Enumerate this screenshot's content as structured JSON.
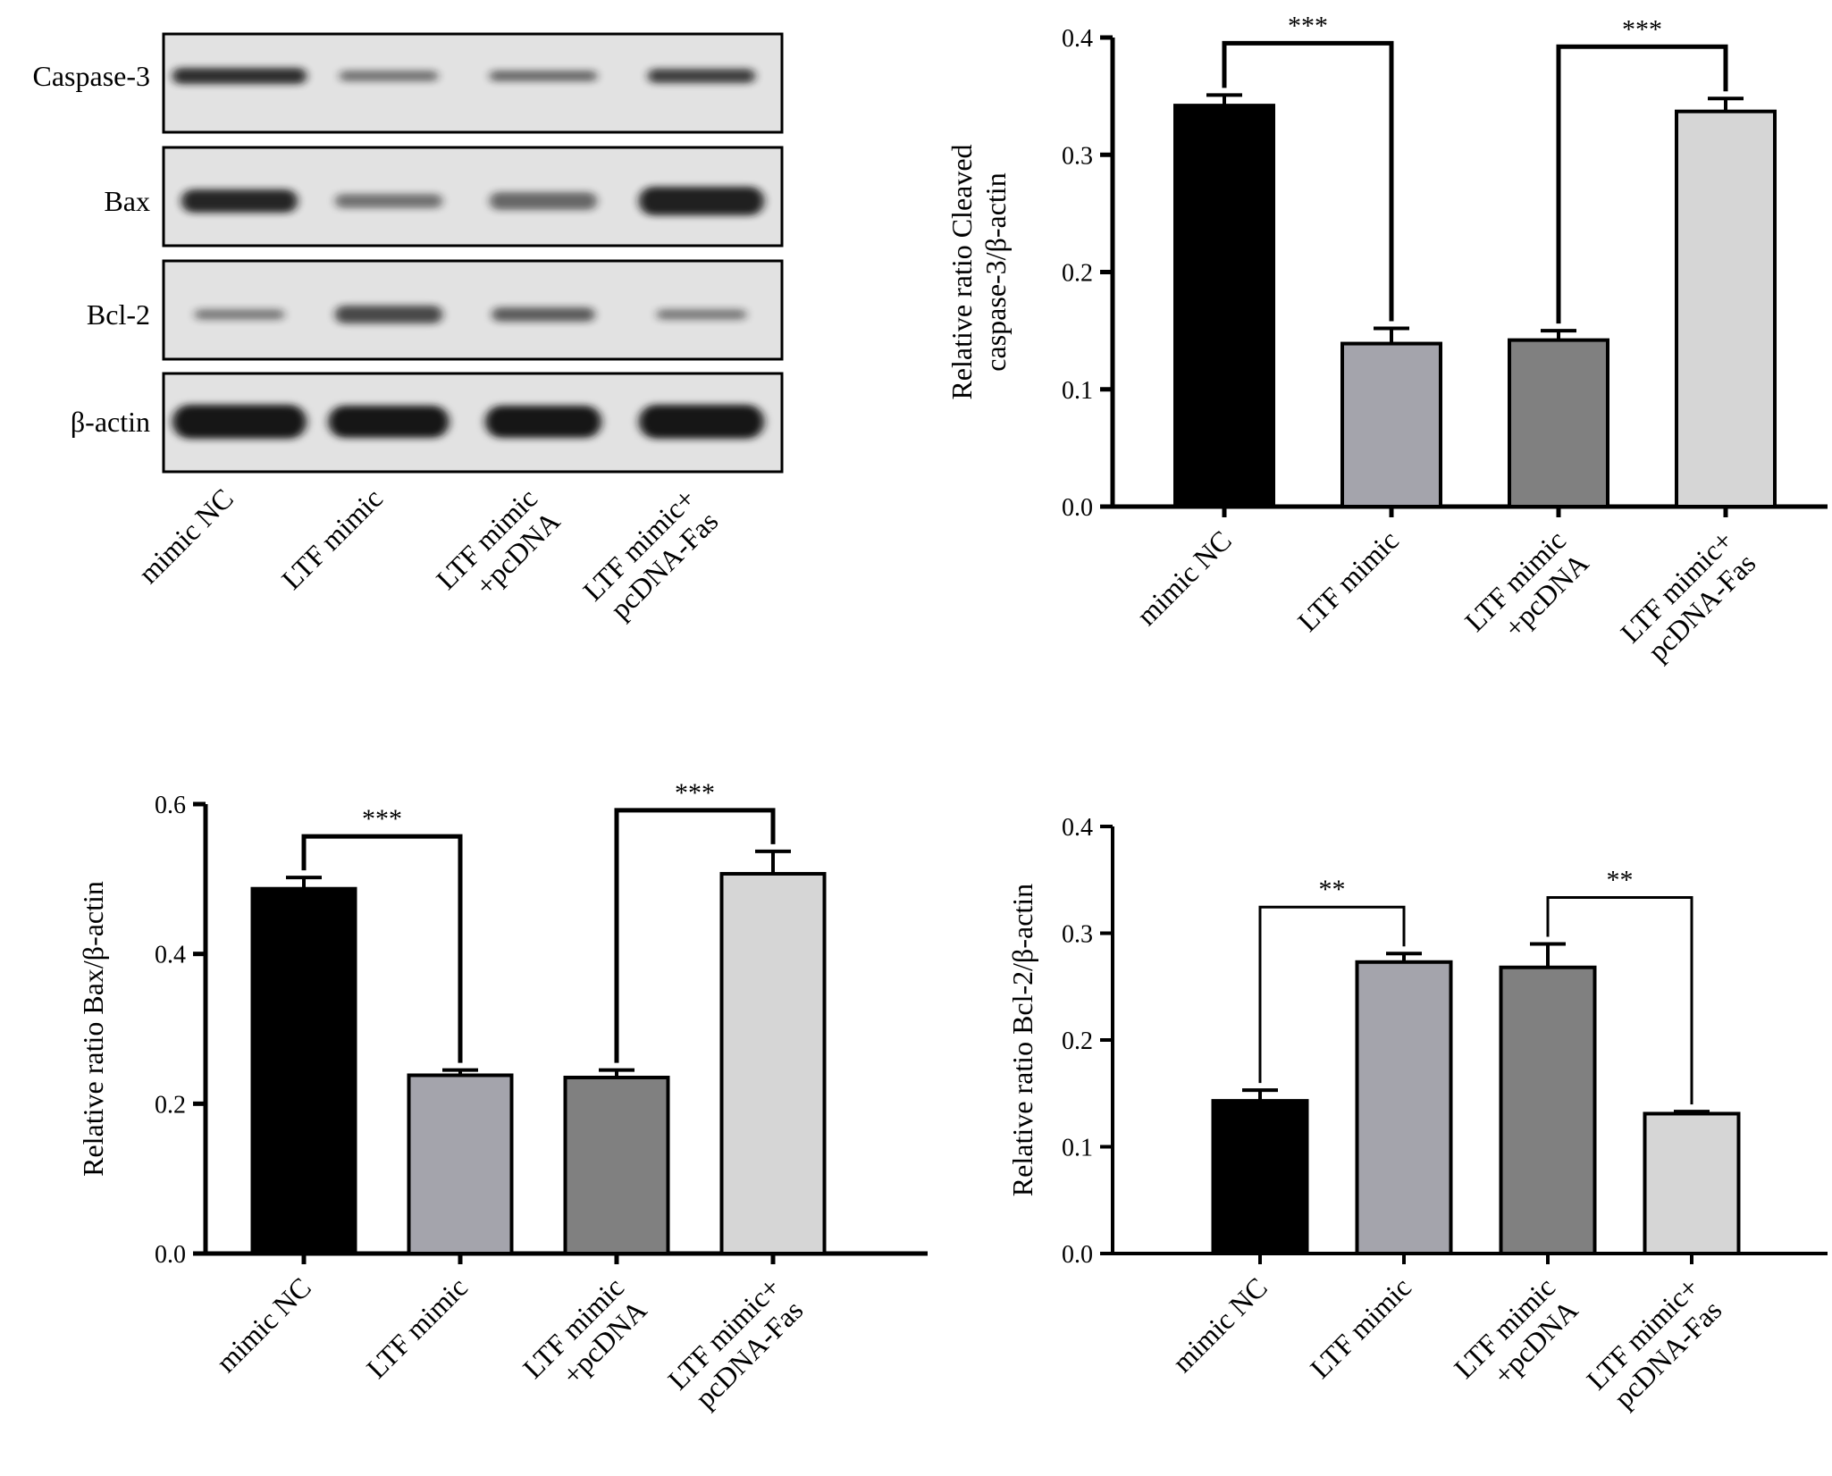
{
  "western_blot": {
    "bands": [
      "Caspase-3",
      "Bax",
      "Bcl-2",
      "β-actin"
    ],
    "lanes": [
      "mimic NC",
      "LTF mimic",
      "LTF mimic\n+pcDNA",
      "LTF mimic+\npcDNA-Fas"
    ]
  },
  "colors": {
    "bar_fills": [
      "#000000",
      "#a4a4ac",
      "#808080",
      "#d6d6d6"
    ],
    "axis": "#000000",
    "blot_band": "#141414",
    "blot_bg": "#e2e2e2"
  },
  "chart_data": [
    {
      "type": "bar",
      "categories": [
        "mimic NC",
        "LTF mimic",
        "LTF mimic\n+pcDNA",
        "LTF mimic+\npcDNA-Fas"
      ],
      "values": [
        0.342,
        0.139,
        0.142,
        0.337
      ],
      "errors": [
        0.009,
        0.013,
        0.008,
        0.011
      ],
      "ylabel": "Relative ratio Cleaved\ncaspase-3/β-actin",
      "ylim": [
        0,
        0.4
      ],
      "yticks": [
        "0.0",
        "0.1",
        "0.2",
        "0.3",
        "0.4"
      ],
      "comparisons": [
        {
          "from": 0,
          "to": 1,
          "label": "***"
        },
        {
          "from": 2,
          "to": 3,
          "label": "***"
        }
      ]
    },
    {
      "type": "bar",
      "categories": [
        "mimic NC",
        "LTF mimic",
        "LTF mimic\n+pcDNA",
        "LTF mimic+\npcDNA-Fas"
      ],
      "values": [
        0.487,
        0.238,
        0.235,
        0.507
      ],
      "errors": [
        0.015,
        0.007,
        0.01,
        0.03
      ],
      "ylabel": "Relative ratio Bax/β-actin",
      "ylim": [
        0,
        0.6
      ],
      "yticks": [
        "0.0",
        "0.2",
        "0.4",
        "0.6"
      ],
      "comparisons": [
        {
          "from": 0,
          "to": 1,
          "label": "***"
        },
        {
          "from": 2,
          "to": 3,
          "label": "***"
        }
      ]
    },
    {
      "type": "bar",
      "categories": [
        "mimic NC",
        "LTF mimic",
        "LTF mimic\n+pcDNA",
        "LTF mimic+\npcDNA-Fas"
      ],
      "values": [
        0.143,
        0.273,
        0.268,
        0.131
      ],
      "errors": [
        0.01,
        0.008,
        0.022,
        0.002
      ],
      "ylabel": "Relative ratio Bcl-2/β-actin",
      "ylim": [
        0,
        0.4
      ],
      "yticks": [
        "0.0",
        "0.1",
        "0.2",
        "0.3",
        "0.4"
      ],
      "comparisons": [
        {
          "from": 0,
          "to": 1,
          "label": "**"
        },
        {
          "from": 2,
          "to": 3,
          "label": "**"
        }
      ]
    }
  ]
}
